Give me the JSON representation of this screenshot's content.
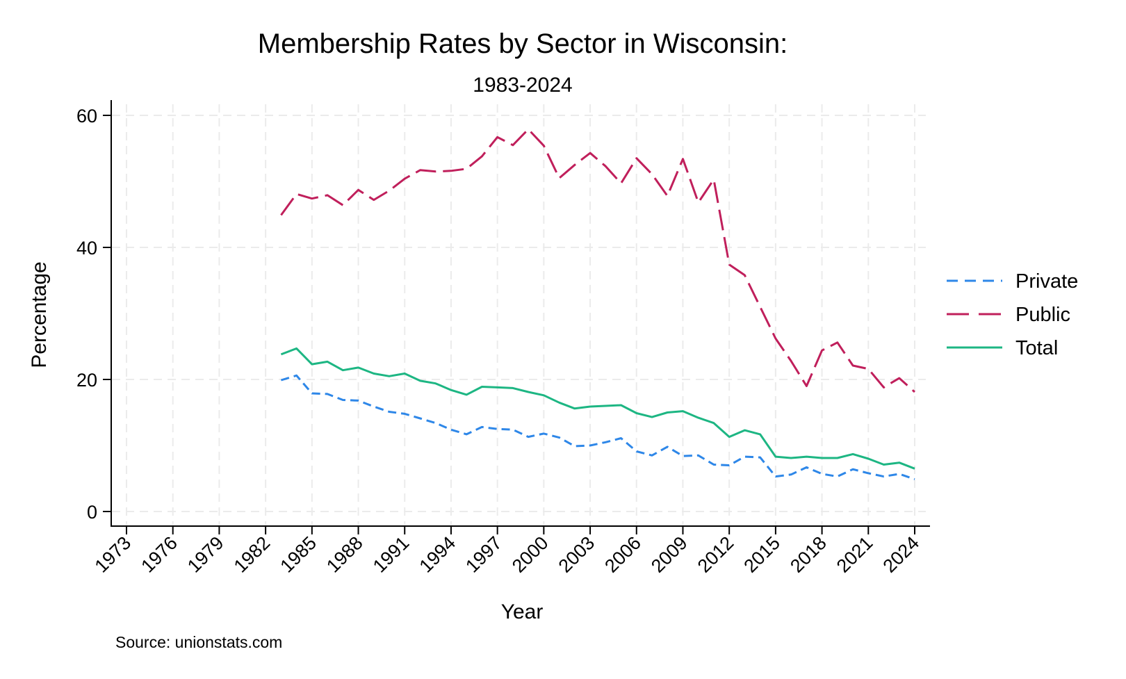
{
  "chart_data": {
    "type": "line",
    "title": "Membership Rates by Sector in Wisconsin:",
    "subtitle": "1983-2024",
    "xlabel": "Year",
    "ylabel": "Percentage",
    "note": "Source: unionstats.com",
    "xlim": [
      1973,
      2024
    ],
    "ylim": [
      0,
      60
    ],
    "xticks": [
      1973,
      1976,
      1979,
      1982,
      1985,
      1988,
      1991,
      1994,
      1997,
      2000,
      2003,
      2006,
      2009,
      2012,
      2015,
      2018,
      2021,
      2024
    ],
    "yticks": [
      0,
      20,
      40,
      60
    ],
    "grid": true,
    "legend_position": "right",
    "x": [
      1983,
      1984,
      1985,
      1986,
      1987,
      1988,
      1989,
      1990,
      1991,
      1992,
      1993,
      1994,
      1995,
      1996,
      1997,
      1998,
      1999,
      2000,
      2001,
      2002,
      2003,
      2004,
      2005,
      2006,
      2007,
      2008,
      2009,
      2010,
      2011,
      2012,
      2013,
      2014,
      2015,
      2016,
      2017,
      2018,
      2019,
      2020,
      2021,
      2022,
      2023,
      2024
    ],
    "series": [
      {
        "name": "Private",
        "color": "#2e87e8",
        "dash": "short-dash",
        "values": [
          19.9,
          20.6,
          17.9,
          17.8,
          16.9,
          16.8,
          15.9,
          15.1,
          14.8,
          14.1,
          13.4,
          12.4,
          11.7,
          12.8,
          12.5,
          12.4,
          11.3,
          11.8,
          11.2,
          9.9,
          10.0,
          10.5,
          11.1,
          9.1,
          8.5,
          9.8,
          8.4,
          8.5,
          7.1,
          7.0,
          8.3,
          8.2,
          5.3,
          5.6,
          6.7,
          5.7,
          5.3,
          6.4,
          5.8,
          5.3,
          5.7,
          4.9
        ]
      },
      {
        "name": "Public",
        "color": "#c01f5b",
        "dash": "long-dash",
        "values": [
          44.9,
          48.1,
          47.4,
          47.9,
          46.4,
          48.7,
          47.2,
          48.6,
          50.4,
          51.7,
          51.5,
          51.6,
          51.9,
          53.8,
          56.7,
          55.5,
          57.9,
          55.4,
          50.5,
          52.5,
          54.3,
          52.3,
          49.7,
          53.5,
          51.1,
          47.8,
          53.4,
          46.8,
          50.3,
          37.4,
          35.8,
          31.0,
          26.2,
          22.8,
          19.0,
          24.4,
          25.6,
          22.1,
          21.6,
          18.8,
          20.2,
          18.1
        ]
      },
      {
        "name": "Total",
        "color": "#1db683",
        "dash": "solid",
        "values": [
          23.8,
          24.7,
          22.3,
          22.7,
          21.4,
          21.8,
          20.9,
          20.5,
          20.9,
          19.8,
          19.4,
          18.4,
          17.7,
          18.9,
          18.8,
          18.7,
          18.1,
          17.6,
          16.5,
          15.6,
          15.9,
          16.0,
          16.1,
          14.9,
          14.3,
          15.0,
          15.2,
          14.2,
          13.4,
          11.3,
          12.3,
          11.7,
          8.3,
          8.1,
          8.3,
          8.1,
          8.1,
          8.7,
          8.0,
          7.1,
          7.4,
          6.5
        ]
      }
    ]
  }
}
